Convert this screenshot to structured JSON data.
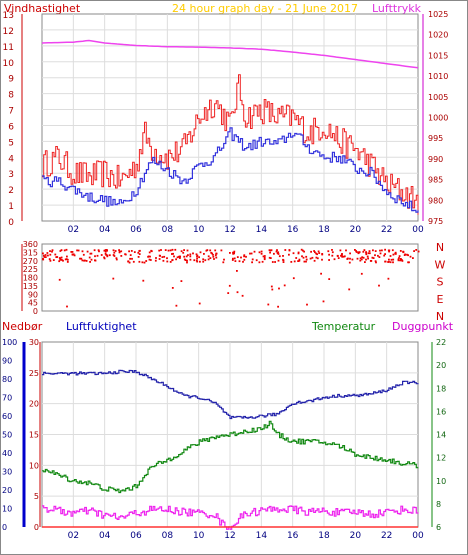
{
  "title": "24 hour graph day - 21 June 2017",
  "colors": {
    "wind_avg": "#3333dd",
    "wind_gust": "#ee2222",
    "pressure": "#ee44ee",
    "direction": "#ee0000",
    "precip": "#0000cc",
    "precip_series": "#ff3333",
    "humidity": "#2222aa",
    "temperature": "#118811",
    "dewpoint": "#ee22ee",
    "title": "#ffcc00",
    "axis_text": "#880000"
  },
  "chart_data": [
    {
      "type": "line",
      "labels": {
        "left": "Vindhastighet",
        "right": "Lufttrykk"
      },
      "xticks": [
        "02",
        "04",
        "06",
        "08",
        "10",
        "12",
        "14",
        "16",
        "18",
        "20",
        "22",
        "00"
      ],
      "ylim_left": [
        0,
        13
      ],
      "yticks_left": [
        "0",
        "1",
        "2",
        "3",
        "4",
        "5",
        "6",
        "7",
        "8",
        "9",
        "10",
        "11",
        "12",
        "13"
      ],
      "ylim_right": [
        975,
        1025
      ],
      "yticks_right": [
        "975",
        "980",
        "985",
        "990",
        "995",
        "1000",
        "1005",
        "1010",
        "1015",
        "1020",
        "1025"
      ],
      "grid": true,
      "series": [
        {
          "name": "Vindhastighet",
          "axis": "left",
          "color_key": "wind_avg",
          "x": [
            0,
            1,
            2,
            3,
            4,
            5,
            6,
            6.5,
            7,
            8,
            9,
            10,
            11,
            12,
            13,
            14,
            15,
            16,
            17,
            18,
            19,
            20,
            21,
            22,
            23,
            24
          ],
          "y": [
            2.5,
            2.5,
            2.0,
            1.5,
            1.3,
            1.0,
            2.0,
            3.0,
            3.8,
            3.2,
            2.5,
            3.5,
            4.0,
            5.5,
            4.6,
            5.0,
            4.8,
            5.6,
            4.6,
            4.0,
            4.0,
            3.3,
            3.0,
            1.8,
            1.2,
            0.6
          ]
        },
        {
          "name": "gust",
          "axis": "left",
          "color_key": "wind_gust",
          "x": [
            0,
            1,
            2,
            3,
            4,
            5,
            6,
            6.5,
            7,
            8,
            9,
            10,
            11,
            12,
            12.5,
            13,
            14,
            15,
            16,
            17,
            18,
            19,
            20,
            21,
            22,
            23,
            24
          ],
          "y": [
            3.5,
            4.0,
            3.0,
            2.8,
            3.0,
            2.5,
            3.5,
            5.5,
            4.5,
            4.0,
            4.5,
            6.5,
            7.5,
            6.0,
            8.5,
            6.5,
            7.0,
            6.5,
            6.5,
            5.5,
            6.0,
            5.0,
            4.5,
            3.5,
            2.3,
            1.8,
            1.2
          ]
        },
        {
          "name": "Lufttrykk",
          "axis": "right",
          "color_key": "pressure",
          "x": [
            0,
            2,
            3,
            4,
            6,
            8,
            10,
            12,
            14,
            16,
            18,
            20,
            22,
            24
          ],
          "y": [
            1018,
            1018.2,
            1018.6,
            1018,
            1017.4,
            1017.1,
            1017,
            1016.8,
            1016.5,
            1015.8,
            1015,
            1014,
            1013,
            1012
          ]
        }
      ]
    },
    {
      "type": "scatter",
      "ylim": [
        0,
        360
      ],
      "yticks": [
        "0",
        "45",
        "90",
        "135",
        "180",
        "225",
        "270",
        "315",
        "360"
      ],
      "compass": [
        "N",
        "W",
        "S",
        "E",
        "N"
      ],
      "series": [
        {
          "name": "direction",
          "color_key": "direction",
          "value_band": [
            260,
            330
          ]
        }
      ]
    },
    {
      "type": "line",
      "labels": {
        "precip": "Nedbør",
        "humidity": "Luftfuktighet",
        "temperature": "Temperatur",
        "dewpoint": "Duggpunkt"
      },
      "xticks": [
        "02",
        "04",
        "06",
        "08",
        "10",
        "12",
        "14",
        "16",
        "18",
        "20",
        "22",
        "00"
      ],
      "ylim_humidity": [
        0,
        100
      ],
      "yticks_humidity": [
        "0",
        "10",
        "20",
        "30",
        "40",
        "50",
        "60",
        "70",
        "80",
        "90",
        "100"
      ],
      "ylim_precip": [
        0,
        30
      ],
      "yticks_precip": [
        "0",
        "5",
        "10",
        "15",
        "20",
        "25",
        "30"
      ],
      "ylim_temp": [
        6,
        22
      ],
      "yticks_temp": [
        "6",
        "8",
        "10",
        "12",
        "14",
        "16",
        "18",
        "20",
        "22"
      ],
      "grid": true,
      "series": [
        {
          "name": "Luftfuktighet",
          "axis": "humidity",
          "color_key": "humidity",
          "x": [
            0,
            2,
            4,
            5,
            6,
            7,
            8,
            9,
            10,
            11,
            12,
            13,
            14,
            15,
            16,
            17,
            18,
            19,
            20,
            21,
            22,
            23,
            24
          ],
          "y": [
            83,
            83,
            83,
            84,
            84,
            80,
            76,
            71,
            70,
            67,
            59,
            59,
            60,
            61,
            67,
            68,
            70,
            71,
            71,
            72,
            74,
            78,
            78
          ]
        },
        {
          "name": "Temperatur",
          "axis": "temp",
          "color_key": "temperature",
          "x": [
            0,
            1,
            2,
            3,
            4,
            5,
            6,
            6.5,
            7,
            8,
            9,
            10,
            11,
            12,
            13,
            14,
            14.5,
            15,
            16,
            17,
            18,
            19,
            20,
            21,
            22,
            23,
            24
          ],
          "y": [
            11.0,
            10.5,
            10.0,
            9.8,
            9.3,
            9.1,
            9.5,
            10.5,
            11.2,
            11.8,
            12.6,
            13.3,
            13.8,
            14.0,
            14.3,
            14.5,
            15.0,
            14.0,
            13.4,
            13.4,
            13.3,
            13.0,
            12.3,
            12.0,
            11.8,
            11.5,
            11.3
          ]
        },
        {
          "name": "Duggpunkt",
          "axis": "temp",
          "color_key": "dewpoint",
          "x": [
            0,
            1,
            2,
            3,
            4,
            5,
            6,
            7,
            8,
            9,
            10,
            11,
            11.5,
            12,
            12.5,
            13,
            14,
            15,
            16,
            17,
            18,
            19,
            20,
            21,
            22,
            23,
            24
          ],
          "y": [
            7.7,
            7.4,
            7.2,
            7.4,
            7.0,
            6.8,
            7.2,
            7.5,
            7.5,
            7.3,
            7.2,
            7.1,
            6.2,
            6.0,
            6.6,
            7.2,
            7.4,
            7.6,
            7.5,
            7.3,
            7.4,
            7.2,
            7.3,
            7.1,
            7.3,
            7.5,
            7.4
          ]
        },
        {
          "name": "Nedbør",
          "axis": "precip",
          "color_key": "precip_series",
          "x": [
            0,
            24
          ],
          "y": [
            0,
            0
          ]
        }
      ]
    }
  ]
}
